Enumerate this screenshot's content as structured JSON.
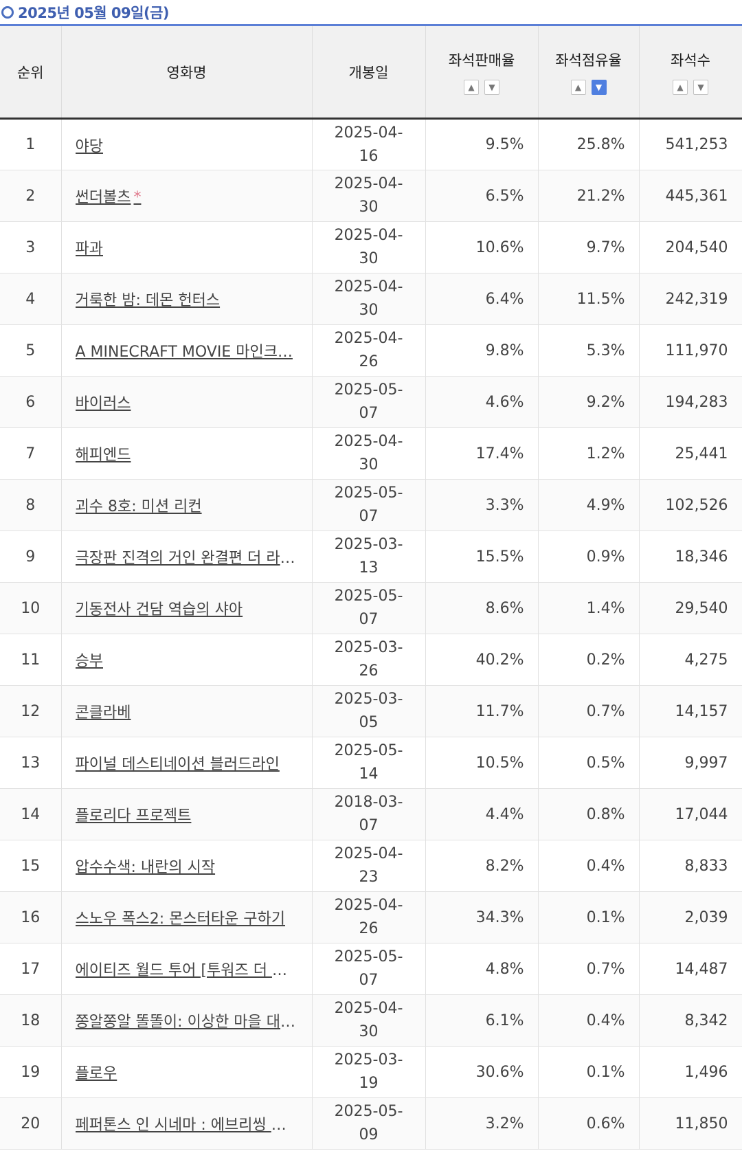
{
  "page": {
    "title": "2025년 05월 09일(금)"
  },
  "table": {
    "headers": {
      "rank": "순위",
      "name": "영화명",
      "date": "개봉일",
      "sales": "좌석판매율",
      "occupancy": "좌석점유율",
      "seats": "좌석수"
    },
    "sort_icons": {
      "up": "▲",
      "down": "▼"
    },
    "rows": [
      {
        "rank": "1",
        "name": "야당",
        "date": "2025-04-16",
        "sales": "9.5%",
        "occupancy": "25.8%",
        "seats": "541,253",
        "star": ""
      },
      {
        "rank": "2",
        "name": "썬더볼츠",
        "date": "2025-04-30",
        "sales": "6.5%",
        "occupancy": "21.2%",
        "seats": "445,361",
        "star": "*"
      },
      {
        "rank": "3",
        "name": "파과",
        "date": "2025-04-30",
        "sales": "10.6%",
        "occupancy": "9.7%",
        "seats": "204,540",
        "star": ""
      },
      {
        "rank": "4",
        "name": "거룩한 밤: 데몬 헌터스",
        "date": "2025-04-30",
        "sales": "6.4%",
        "occupancy": "11.5%",
        "seats": "242,319",
        "star": ""
      },
      {
        "rank": "5",
        "name": "A MINECRAFT MOVIE 마인크…",
        "date": "2025-04-26",
        "sales": "9.8%",
        "occupancy": "5.3%",
        "seats": "111,970",
        "star": ""
      },
      {
        "rank": "6",
        "name": "바이러스",
        "date": "2025-05-07",
        "sales": "4.6%",
        "occupancy": "9.2%",
        "seats": "194,283",
        "star": ""
      },
      {
        "rank": "7",
        "name": "해피엔드",
        "date": "2025-04-30",
        "sales": "17.4%",
        "occupancy": "1.2%",
        "seats": "25,441",
        "star": ""
      },
      {
        "rank": "8",
        "name": "괴수 8호: 미션 리컨",
        "date": "2025-05-07",
        "sales": "3.3%",
        "occupancy": "4.9%",
        "seats": "102,526",
        "star": ""
      },
      {
        "rank": "9",
        "name": "극장판 진격의 거인 완결편 더 라스…",
        "date": "2025-03-13",
        "sales": "15.5%",
        "occupancy": "0.9%",
        "seats": "18,346",
        "star": ""
      },
      {
        "rank": "10",
        "name": "기동전사 건담 역습의 샤아",
        "date": "2025-05-07",
        "sales": "8.6%",
        "occupancy": "1.4%",
        "seats": "29,540",
        "star": ""
      },
      {
        "rank": "11",
        "name": "승부",
        "date": "2025-03-26",
        "sales": "40.2%",
        "occupancy": "0.2%",
        "seats": "4,275",
        "star": ""
      },
      {
        "rank": "12",
        "name": "콘클라베",
        "date": "2025-03-05",
        "sales": "11.7%",
        "occupancy": "0.7%",
        "seats": "14,157",
        "star": ""
      },
      {
        "rank": "13",
        "name": "파이널 데스티네이션 블러드라인",
        "date": "2025-05-14",
        "sales": "10.5%",
        "occupancy": "0.5%",
        "seats": "9,997",
        "star": ""
      },
      {
        "rank": "14",
        "name": "플로리다 프로젝트",
        "date": "2018-03-07",
        "sales": "4.4%",
        "occupancy": "0.8%",
        "seats": "17,044",
        "star": ""
      },
      {
        "rank": "15",
        "name": "압수수색: 내란의 시작",
        "date": "2025-04-23",
        "sales": "8.2%",
        "occupancy": "0.4%",
        "seats": "8,833",
        "star": ""
      },
      {
        "rank": "16",
        "name": "스노우 폭스2: 몬스터타운 구하기",
        "date": "2025-04-26",
        "sales": "34.3%",
        "occupancy": "0.1%",
        "seats": "2,039",
        "star": ""
      },
      {
        "rank": "17",
        "name": "에이티즈 월드 투어 [투워즈 더 라…",
        "date": "2025-05-07",
        "sales": "4.8%",
        "occupancy": "0.7%",
        "seats": "14,487",
        "star": ""
      },
      {
        "rank": "18",
        "name": "쫑알쫑알 똘똘이: 이상한 마을 대모…",
        "date": "2025-04-30",
        "sales": "6.1%",
        "occupancy": "0.4%",
        "seats": "8,342",
        "star": ""
      },
      {
        "rank": "19",
        "name": "플로우",
        "date": "2025-03-19",
        "sales": "30.6%",
        "occupancy": "0.1%",
        "seats": "1,496",
        "star": ""
      },
      {
        "rank": "20",
        "name": "페퍼톤스 인 시네마 : 에브리씽 이…",
        "date": "2025-05-09",
        "sales": "3.2%",
        "occupancy": "0.6%",
        "seats": "11,850",
        "star": ""
      }
    ]
  }
}
